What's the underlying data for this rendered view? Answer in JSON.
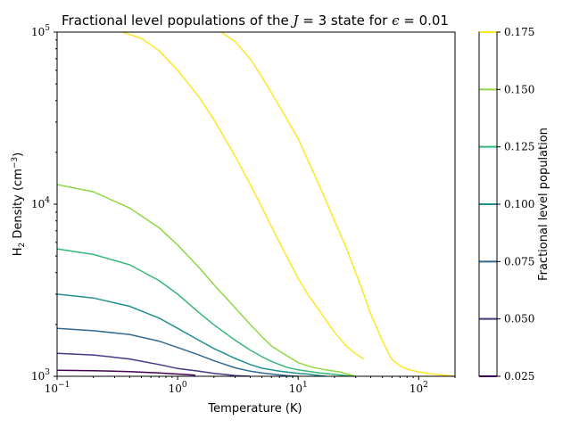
{
  "chart_data": {
    "type": "line",
    "title": {
      "prefix": "Fractional level populations of the ",
      "var_j": "J",
      "mid1": " = 3 state for ",
      "var_eps": "ϵ",
      "mid2": " = 0.01"
    },
    "xlabel": "Temperature (K)",
    "ylabel": {
      "pre": "H",
      "sub": "2",
      "post": " Density (cm",
      "sup": "−3",
      "end": ")"
    },
    "xscale": "log",
    "yscale": "log",
    "xlim": [
      0.1,
      200
    ],
    "ylim": [
      1000,
      100000
    ],
    "x_ticks": [
      {
        "value": 0.1,
        "base": "10",
        "exp": "−1"
      },
      {
        "value": 1,
        "base": "10",
        "exp": "0"
      },
      {
        "value": 10,
        "base": "10",
        "exp": "1"
      },
      {
        "value": 100,
        "base": "10",
        "exp": "2"
      }
    ],
    "y_ticks": [
      {
        "value": 1000,
        "base": "10",
        "exp": "3"
      },
      {
        "value": 10000,
        "base": "10",
        "exp": "4"
      },
      {
        "value": 100000,
        "base": "10",
        "exp": "5"
      }
    ],
    "colorbar": {
      "label": "Fractional level population",
      "range": [
        0.025,
        0.175
      ],
      "ticks": [
        "0.025",
        "0.050",
        "0.075",
        "0.100",
        "0.125",
        "0.150",
        "0.175"
      ],
      "levels": [
        {
          "value": 0.025,
          "color": "#440154"
        },
        {
          "value": 0.05,
          "color": "#443983"
        },
        {
          "value": 0.075,
          "color": "#31688e"
        },
        {
          "value": 0.1,
          "color": "#21918c"
        },
        {
          "value": 0.125,
          "color": "#35b779"
        },
        {
          "value": 0.15,
          "color": "#90d743"
        },
        {
          "value": 0.175,
          "color": "#fde725"
        }
      ]
    },
    "series": [
      {
        "level": 0.025,
        "color": "#440154",
        "points": [
          [
            0.1,
            1085
          ],
          [
            0.2,
            1078
          ],
          [
            0.4,
            1065
          ],
          [
            0.7,
            1045
          ],
          [
            1.0,
            1030
          ],
          [
            1.4,
            1015
          ]
        ]
      },
      {
        "level": 0.05,
        "color": "#443983",
        "points": [
          [
            0.1,
            1360
          ],
          [
            0.2,
            1330
          ],
          [
            0.4,
            1260
          ],
          [
            0.7,
            1170
          ],
          [
            1.0,
            1110
          ],
          [
            1.5,
            1070
          ],
          [
            2.0,
            1040
          ],
          [
            3.0,
            1010
          ],
          [
            4.0,
            1000
          ]
        ]
      },
      {
        "level": 0.075,
        "color": "#31688e",
        "points": [
          [
            0.1,
            1900
          ],
          [
            0.2,
            1840
          ],
          [
            0.4,
            1750
          ],
          [
            0.7,
            1600
          ],
          [
            1.0,
            1470
          ],
          [
            1.5,
            1330
          ],
          [
            2.0,
            1230
          ],
          [
            3.0,
            1120
          ],
          [
            4.0,
            1070
          ],
          [
            5.0,
            1045
          ],
          [
            6.0,
            1030
          ],
          [
            8.0,
            1010
          ],
          [
            10.0,
            1000
          ]
        ]
      },
      {
        "level": 0.1,
        "color": "#21918c",
        "points": [
          [
            0.1,
            3000
          ],
          [
            0.2,
            2850
          ],
          [
            0.4,
            2550
          ],
          [
            0.7,
            2180
          ],
          [
            1.0,
            1900
          ],
          [
            1.5,
            1620
          ],
          [
            2.0,
            1450
          ],
          [
            3.0,
            1270
          ],
          [
            4.0,
            1170
          ],
          [
            5.0,
            1115
          ],
          [
            7.0,
            1070
          ],
          [
            10.0,
            1040
          ],
          [
            12.0,
            1030
          ],
          [
            15.0,
            1010
          ],
          [
            17.0,
            1000
          ]
        ]
      },
      {
        "level": 0.125,
        "color": "#35b779",
        "points": [
          [
            0.1,
            5500
          ],
          [
            0.2,
            5100
          ],
          [
            0.4,
            4450
          ],
          [
            0.7,
            3600
          ],
          [
            1.0,
            3000
          ],
          [
            1.5,
            2350
          ],
          [
            2.0,
            1990
          ],
          [
            3.0,
            1620
          ],
          [
            4.0,
            1420
          ],
          [
            5.0,
            1300
          ],
          [
            6.0,
            1220
          ],
          [
            8.0,
            1130
          ],
          [
            10.0,
            1090
          ],
          [
            15.0,
            1045
          ],
          [
            20.0,
            1025
          ],
          [
            28.0,
            1000
          ]
        ]
      },
      {
        "level": 0.15,
        "color": "#90d743",
        "points": [
          [
            0.1,
            13000
          ],
          [
            0.2,
            11800
          ],
          [
            0.4,
            9500
          ],
          [
            0.7,
            7300
          ],
          [
            1.0,
            5800
          ],
          [
            1.5,
            4300
          ],
          [
            2.0,
            3400
          ],
          [
            3.0,
            2500
          ],
          [
            4.0,
            2000
          ],
          [
            5.0,
            1700
          ],
          [
            6.0,
            1500
          ],
          [
            8.0,
            1320
          ],
          [
            10.0,
            1200
          ],
          [
            13.0,
            1130
          ],
          [
            17.0,
            1090
          ],
          [
            22.0,
            1060
          ],
          [
            30.0,
            1000
          ]
        ]
      },
      {
        "level": 0.175,
        "color": "#fde725",
        "points": [
          [
            0.35,
            100000
          ],
          [
            0.5,
            92000
          ],
          [
            0.7,
            78000
          ],
          [
            1.0,
            60000
          ],
          [
            1.5,
            42000
          ],
          [
            2.0,
            31000
          ],
          [
            3.0,
            19000
          ],
          [
            4.0,
            13000
          ],
          [
            5.0,
            9600
          ],
          [
            6.0,
            7400
          ],
          [
            8.0,
            5000
          ],
          [
            10.0,
            3700
          ],
          [
            12.0,
            3000
          ],
          [
            15.0,
            2400
          ],
          [
            20.0,
            1800
          ],
          [
            25.0,
            1500
          ],
          [
            30.0,
            1350
          ],
          [
            35.0,
            1260
          ]
        ]
      },
      {
        "level": 0.175,
        "color": "#fde725",
        "points": [
          [
            2.3,
            100000
          ],
          [
            3.0,
            88000
          ],
          [
            4.0,
            70000
          ],
          [
            5.0,
            55000
          ],
          [
            7.0,
            37000
          ],
          [
            10.0,
            24000
          ],
          [
            13.0,
            16000
          ],
          [
            17.0,
            10500
          ],
          [
            20.0,
            8000
          ],
          [
            25.0,
            5600
          ],
          [
            30.0,
            4000
          ],
          [
            35.0,
            3000
          ],
          [
            40.0,
            2300
          ],
          [
            45.0,
            1900
          ],
          [
            50.0,
            1600
          ],
          [
            55.0,
            1400
          ],
          [
            60.0,
            1250
          ],
          [
            70.0,
            1150
          ],
          [
            80.0,
            1100
          ],
          [
            100.0,
            1060
          ],
          [
            130.0,
            1030
          ],
          [
            200.0,
            1000
          ]
        ]
      }
    ]
  }
}
